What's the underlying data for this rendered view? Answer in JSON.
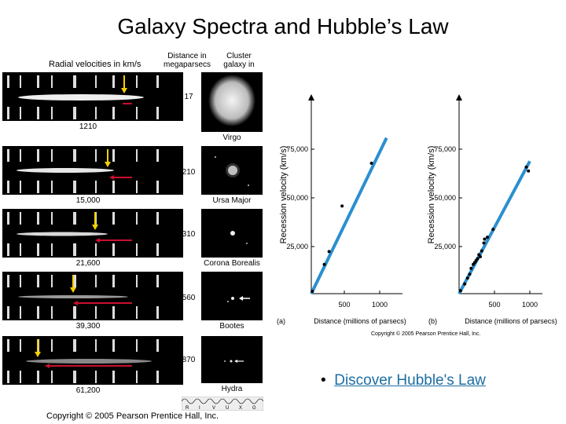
{
  "title": "Galaxy Spectra and Hubble’s Law",
  "spectra": {
    "header_velocity": "Radial velocities in km/s",
    "header_distance": "Distance in megaparsecs",
    "header_cluster": "Cluster galaxy in",
    "rows": [
      {
        "velocity": "1210",
        "distance": "17",
        "cluster": "Virgo"
      },
      {
        "velocity": "15,000",
        "distance": "210",
        "cluster": "Ursa Major"
      },
      {
        "velocity": "21,600",
        "distance": "310",
        "cluster": "Corona Borealis"
      },
      {
        "velocity": "39,300",
        "distance": "560",
        "cluster": "Bootes"
      },
      {
        "velocity": "61,200",
        "distance": "870",
        "cluster": "Hydra"
      }
    ],
    "filter_letters": [
      "R",
      "I",
      "V",
      "U",
      "X",
      "G"
    ]
  },
  "plot_a": {
    "panel_label": "(a)",
    "ylabel": "Recession velocity (km/s)",
    "xlabel": "Distance (millions of parsecs)",
    "yticks": [
      "25,000",
      "50,000",
      "75,000"
    ],
    "xticks": [
      "500",
      "1000"
    ]
  },
  "plot_b": {
    "panel_label": "(b)",
    "ylabel": "Recession velocity (km/s)",
    "xlabel": "Distance (millions of parsecs)",
    "yticks": [
      "25,000",
      "50,000",
      "75,000"
    ],
    "xticks": [
      "500",
      "1000"
    ]
  },
  "chart_data": [
    {
      "type": "scatter",
      "xlabel": "Distance (millions of parsecs)",
      "ylabel": "Recession velocity (km/s)",
      "xlim": [
        0,
        1150
      ],
      "ylim": [
        0,
        90000
      ],
      "points": [
        [
          15,
          1200
        ],
        [
          190,
          15000
        ],
        [
          260,
          21600
        ],
        [
          450,
          45000
        ],
        [
          880,
          67000
        ]
      ],
      "fit_line": [
        [
          0,
          0
        ],
        [
          1100,
          80000
        ]
      ],
      "fit_color": "#2a8fd0"
    },
    {
      "type": "scatter",
      "xlabel": "Distance (millions of parsecs)",
      "ylabel": "Recession velocity (km/s)",
      "xlim": [
        0,
        1150
      ],
      "ylim": [
        0,
        90000
      ],
      "points": [
        [
          20,
          1500
        ],
        [
          80,
          5000
        ],
        [
          120,
          8000
        ],
        [
          150,
          10000
        ],
        [
          170,
          13000
        ],
        [
          200,
          15000
        ],
        [
          220,
          16000
        ],
        [
          240,
          17000
        ],
        [
          260,
          18000
        ],
        [
          280,
          20000
        ],
        [
          300,
          19000
        ],
        [
          320,
          22000
        ],
        [
          350,
          26000
        ],
        [
          360,
          28000
        ],
        [
          400,
          29000
        ],
        [
          480,
          33000
        ],
        [
          950,
          65000
        ],
        [
          980,
          63000
        ]
      ],
      "fit_line": [
        [
          0,
          0
        ],
        [
          1000,
          68000
        ]
      ],
      "fit_color": "#2a8fd0"
    }
  ],
  "copyright_main": "Copyright © 2005 Pearson Prentice Hall, Inc.",
  "copyright_plot": "Copyright © 2005 Pearson Prentice Hall, Inc.",
  "bullet_symbol": "•",
  "bullet_link": "Discover Hubble's Law"
}
